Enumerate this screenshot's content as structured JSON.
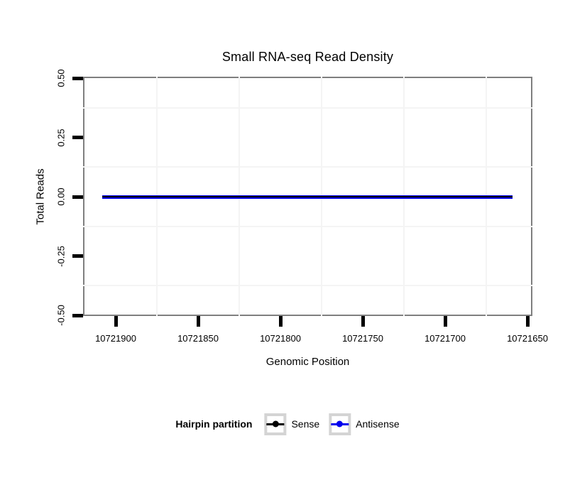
{
  "chart_data": {
    "type": "line",
    "title": "Small RNA-seq Read Density",
    "xlabel": "Genomic Position",
    "ylabel": "Total Reads",
    "x_axis": {
      "reversed": true,
      "tick_values": [
        10721900,
        10721850,
        10721800,
        10721750,
        10721700,
        10721650
      ],
      "tick_labels": [
        "10721900",
        "10721850",
        "10721800",
        "10721750",
        "10721700",
        "10721650"
      ]
    },
    "y_axis": {
      "lim": [
        -0.5,
        0.5
      ],
      "tick_values": [
        0.5,
        0.25,
        0,
        -0.25,
        -0.5
      ],
      "tick_labels": [
        "0.50",
        "0.25",
        "0.00",
        "-0.25",
        "-0.50"
      ]
    },
    "series": [
      {
        "name": "Antisense",
        "color": "#0000EE",
        "y": 0,
        "x_start": 10721908,
        "x_end": 10721659,
        "line_width": 5
      },
      {
        "name": "Sense",
        "color": "#000000",
        "y": 0,
        "x_start": 10721908,
        "x_end": 10721659,
        "line_width": 2
      }
    ],
    "legend": {
      "title": "Hairpin partition",
      "position": "bottom",
      "entries": [
        {
          "label": "Sense",
          "color": "#000000"
        },
        {
          "label": "Antisense",
          "color": "#0000EE"
        }
      ]
    },
    "grid": {
      "minor_color": "#f4f4f4",
      "major_visible": false
    },
    "colors": {
      "panel_border": "#7f7f7f",
      "tick": "#000000",
      "text": "#000000",
      "legend_key_border": "#d4d4d4",
      "background": "#ffffff"
    }
  }
}
